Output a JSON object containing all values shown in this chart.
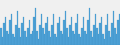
{
  "values": [
    6,
    3,
    8,
    10,
    5,
    4,
    9,
    11,
    4,
    3,
    7,
    12,
    6,
    3,
    8,
    10,
    5,
    3,
    6,
    9,
    4,
    5,
    10,
    13,
    5,
    2,
    7,
    11,
    6,
    4,
    8,
    10,
    5,
    3,
    7,
    11,
    4,
    3,
    8,
    10,
    5,
    4,
    9,
    12,
    6,
    3,
    7,
    10,
    5,
    4,
    8,
    11,
    4,
    3,
    6,
    10,
    5,
    4,
    9,
    13,
    5,
    3,
    7,
    11,
    6,
    4,
    8,
    10,
    4,
    2,
    7,
    11,
    5,
    3,
    8,
    12,
    6,
    4,
    9,
    11
  ],
  "bar_color": "#4fa3d8",
  "edge_color": "#3a8bbf",
  "background_color": "#f0f0f0",
  "ylim": [
    0,
    16
  ]
}
